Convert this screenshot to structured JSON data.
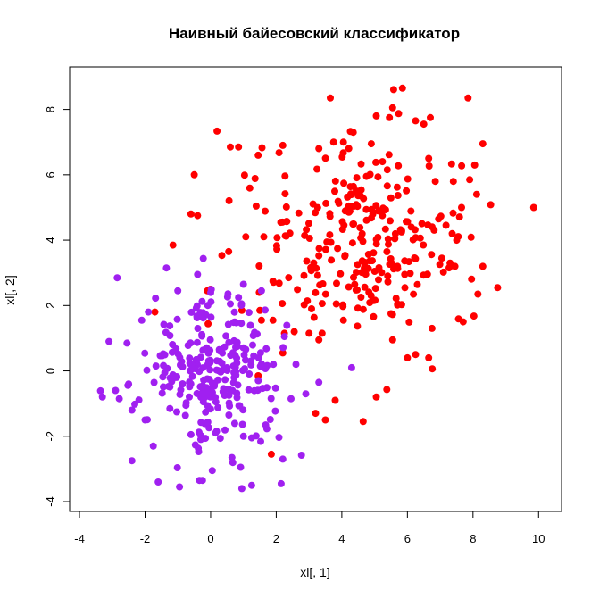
{
  "chart_data": {
    "type": "scatter",
    "title": "Наивный байесовский классификатор",
    "xlabel": "xl[, 1]",
    "ylabel": "xl[, 2]",
    "xlim": [
      -4.3,
      10.7
    ],
    "ylim": [
      -4.3,
      9.3
    ],
    "xticks": [
      -4,
      -2,
      0,
      2,
      4,
      6,
      8,
      10
    ],
    "yticks": [
      -4,
      -2,
      0,
      2,
      4,
      6,
      8
    ],
    "grid": false,
    "colors": {
      "class1": "#FF0000",
      "class2": "#A020F0"
    },
    "seed": 20240511,
    "series": [
      {
        "color": "#FF0000",
        "generated": {
          "n": 250,
          "center": [
            4.5,
            4.0
          ],
          "sd": [
            1.5,
            1.55
          ]
        },
        "points": [
          [
            3.65,
            8.35
          ],
          [
            5.85,
            8.65
          ],
          [
            5.55,
            8.05
          ],
          [
            6.25,
            7.65
          ],
          [
            7.85,
            8.35
          ],
          [
            9.85,
            5.0
          ],
          [
            8.75,
            2.55
          ],
          [
            8.3,
            6.95
          ],
          [
            8.05,
            6.3
          ],
          [
            7.9,
            5.85
          ],
          [
            7.65,
            5.0
          ],
          [
            7.7,
            1.5
          ],
          [
            6.65,
            0.4
          ],
          [
            6.0,
            0.4
          ],
          [
            5.55,
            0.95
          ],
          [
            5.05,
            -0.8
          ],
          [
            4.65,
            -1.55
          ],
          [
            3.8,
            -0.9
          ],
          [
            3.5,
            -1.5
          ],
          [
            3.2,
            -1.3
          ],
          [
            2.2,
            0.55
          ],
          [
            1.85,
            -2.55
          ],
          [
            1.45,
            -0.15
          ],
          [
            0.95,
            1.85
          ],
          [
            0.0,
            2.5
          ],
          [
            -0.6,
            4.8
          ],
          [
            -0.4,
            4.75
          ],
          [
            -0.5,
            6.0
          ],
          [
            -1.15,
            3.85
          ],
          [
            -1.7,
            1.8
          ],
          [
            0.6,
            6.85
          ],
          [
            0.85,
            6.85
          ],
          [
            0.55,
            3.65
          ],
          [
            1.45,
            6.6
          ],
          [
            2.2,
            6.9
          ],
          [
            3.3,
            6.8
          ],
          [
            3.75,
            7.0
          ],
          [
            4.05,
            7.0
          ],
          [
            4.35,
            7.3
          ],
          [
            4.9,
            6.95
          ],
          [
            5.05,
            7.8
          ],
          [
            5.45,
            7.75
          ],
          [
            6.5,
            7.55
          ],
          [
            6.65,
            6.5
          ],
          [
            6.85,
            5.8
          ],
          [
            6.95,
            4.65
          ],
          [
            7.45,
            3.2
          ],
          [
            7.05,
            3.45
          ],
          [
            6.75,
            1.3
          ],
          [
            5.5,
            1.75
          ],
          [
            4.05,
            1.55
          ],
          [
            3.4,
            1.15
          ],
          [
            3.0,
            1.15
          ],
          [
            2.55,
            1.2
          ],
          [
            2.25,
            1.15
          ],
          [
            1.9,
            1.55
          ],
          [
            1.5,
            1.85
          ],
          [
            1.55,
            1.55
          ],
          [
            -0.1,
            2.45
          ],
          [
            8.3,
            3.2
          ],
          [
            8.15,
            2.35
          ],
          [
            7.5,
            4.0
          ],
          [
            6.25,
            0.5
          ],
          [
            7.3,
            3.3
          ],
          [
            5.7,
            2.05
          ]
        ]
      },
      {
        "color": "#A020F0",
        "generated": {
          "n": 250,
          "center": [
            0.0,
            0.0
          ],
          "sd": [
            1.05,
            1.15
          ]
        },
        "points": [
          [
            -2.85,
            2.85
          ],
          [
            -3.3,
            -0.8
          ],
          [
            -3.1,
            0.9
          ],
          [
            -2.4,
            -2.75
          ],
          [
            -2.0,
            -1.5
          ],
          [
            -1.75,
            -2.3
          ],
          [
            -1.6,
            -3.4
          ],
          [
            -0.95,
            -3.55
          ],
          [
            -0.25,
            -3.35
          ],
          [
            0.05,
            -3.05
          ],
          [
            0.95,
            -3.6
          ],
          [
            1.25,
            -3.5
          ],
          [
            2.15,
            -3.45
          ],
          [
            2.2,
            -2.7
          ],
          [
            1.25,
            -2.05
          ],
          [
            1.0,
            -2.0
          ],
          [
            0.65,
            -2.65
          ],
          [
            0.15,
            -1.9
          ],
          [
            -0.6,
            -1.95
          ],
          [
            -0.3,
            -2.1
          ],
          [
            2.45,
            -0.85
          ],
          [
            2.9,
            -0.7
          ],
          [
            3.3,
            -0.35
          ],
          [
            4.3,
            0.1
          ],
          [
            2.6,
            0.2
          ],
          [
            2.25,
            1.05
          ],
          [
            1.0,
            2.65
          ],
          [
            0.85,
            2.25
          ],
          [
            0.0,
            2.4
          ],
          [
            -1.0,
            2.45
          ],
          [
            -1.35,
            3.15
          ],
          [
            -1.9,
            1.8
          ],
          [
            -2.1,
            1.55
          ],
          [
            -2.55,
            0.85
          ],
          [
            -2.9,
            -0.6
          ],
          [
            -2.5,
            -0.4
          ],
          [
            -2.4,
            -1.2
          ],
          [
            1.55,
            2.45
          ],
          [
            0.6,
            2.05
          ],
          [
            -0.4,
            2.95
          ]
        ]
      }
    ]
  }
}
